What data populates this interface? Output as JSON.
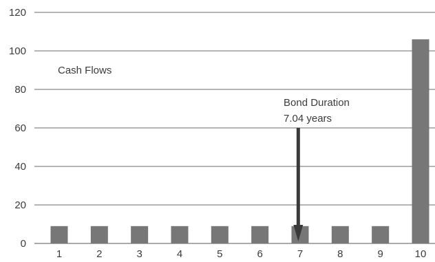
{
  "chart_data": {
    "type": "bar",
    "categories": [
      "1",
      "2",
      "3",
      "4",
      "5",
      "6",
      "7",
      "8",
      "9",
      "10"
    ],
    "values": [
      9,
      9,
      9,
      9,
      9,
      9,
      9,
      9,
      9,
      106
    ],
    "ylim": [
      0,
      120
    ],
    "yticks": [
      "0",
      "20",
      "40",
      "60",
      "80",
      "100",
      "120"
    ],
    "grid": true,
    "bar_color": "#777777",
    "series_label": "Cash Flows",
    "duration_marker": {
      "value": 7.04,
      "label_line1": "Bond Duration",
      "label_line2": "7.04 years",
      "arrow_top_y": 60,
      "arrow_color": "#3a3a3a"
    }
  }
}
